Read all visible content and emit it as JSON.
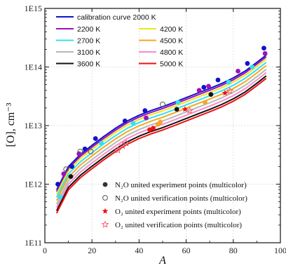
{
  "chart_data": {
    "type": "scatter",
    "xlabel": "A",
    "ylabel": "[O], cm⁻³",
    "xlim": [
      0,
      100
    ],
    "ylim": [
      100000000000.0,
      1000000000000000.0
    ],
    "y_scale": "log",
    "x_ticks": [
      "0",
      "20",
      "40",
      "60",
      "80",
      "100"
    ],
    "y_ticks": [
      {
        "value": 100000000000.0,
        "label": "1E11"
      },
      {
        "value": 1000000000000.0,
        "label": "1E12"
      },
      {
        "value": 10000000000000.0,
        "label": "1E13"
      },
      {
        "value": 100000000000000.0,
        "label": "1E14"
      },
      {
        "value": 1000000000000000.0,
        "label": "1E15"
      }
    ],
    "grid": true,
    "legend_curves": [
      {
        "name": "calibration curve 2000 K",
        "color": "#1212c8"
      },
      {
        "name": "2200 K",
        "color": "#9b12b8"
      },
      {
        "name": "4200 K",
        "color": "#e8e818"
      },
      {
        "name": "2700 K",
        "color": "#33e0f0"
      },
      {
        "name": "4500 K",
        "color": "#f5a623"
      },
      {
        "name": "3100 K",
        "color": "#b8b8b8"
      },
      {
        "name": "4800 K",
        "color": "#f58cc8"
      },
      {
        "name": "3600 K",
        "color": "#111111"
      },
      {
        "name": "5000 K",
        "color": "#ee1111"
      }
    ],
    "legend_markers": [
      {
        "label": "N₂O united experiment points (multicolor)",
        "marker": "filled-circle",
        "color": "#333333"
      },
      {
        "label": "N₂O united verification points (multicolor)",
        "marker": "open-circle",
        "color": "#555555"
      },
      {
        "label": "O₂ united experiment points (multicolor)",
        "marker": "filled-star",
        "color": "#ee1111"
      },
      {
        "label": "O₂ united verification points (multicolor)",
        "marker": "open-star",
        "color": "#ee5566"
      }
    ],
    "curve_base": {
      "x": [
        5,
        10,
        15,
        20,
        25,
        30,
        35,
        40,
        45,
        50,
        55,
        60,
        65,
        70,
        75,
        80,
        85,
        90,
        94
      ],
      "y": [
        800000000000.0,
        2000000000000.0,
        3200000000000.0,
        4600000000000.0,
        6500000000000.0,
        9000000000000.0,
        12000000000000.0,
        15000000000000.0,
        18000000000000.0,
        21000000000000.0,
        25000000000000.0,
        30000000000000.0,
        36000000000000.0,
        43000000000000.0,
        52000000000000.0,
        65000000000000.0,
        85000000000000.0,
        120000000000000.0,
        160000000000000.0
      ]
    },
    "curve_factors": [
      1.0,
      0.93,
      0.85,
      0.75,
      0.66,
      0.57,
      0.5,
      0.44,
      0.4
    ],
    "points": [
      {
        "x": 5.5,
        "y": 1000000000000.0,
        "marker": "filled-circle",
        "color": "#1212c8"
      },
      {
        "x": 6.5,
        "y": 600000000000.0,
        "marker": "filled-circle",
        "color": "#33e0f0"
      },
      {
        "x": 8,
        "y": 1500000000000.0,
        "marker": "filled-circle",
        "color": "#9b12b8"
      },
      {
        "x": 9,
        "y": 1800000000000.0,
        "marker": "open-circle",
        "color": "#555555"
      },
      {
        "x": 11,
        "y": 1350000000000.0,
        "marker": "filled-circle",
        "color": "#111111"
      },
      {
        "x": 11.5,
        "y": 2000000000000.0,
        "marker": "filled-circle",
        "color": "#1212c8"
      },
      {
        "x": 14.5,
        "y": 3300000000000.0,
        "marker": "filled-circle",
        "color": "#9b12b8"
      },
      {
        "x": 15,
        "y": 3600000000000.0,
        "marker": "open-circle",
        "color": "#555555"
      },
      {
        "x": 17,
        "y": 4000000000000.0,
        "marker": "filled-circle",
        "color": "#1212c8"
      },
      {
        "x": 19.5,
        "y": 3600000000000.0,
        "marker": "open-circle",
        "color": "#555555"
      },
      {
        "x": 21.5,
        "y": 6000000000000.0,
        "marker": "filled-circle",
        "color": "#1212c8"
      },
      {
        "x": 24,
        "y": 5000000000000.0,
        "marker": "filled-circle",
        "color": "#33e0f0"
      },
      {
        "x": 31,
        "y": 3800000000000.0,
        "marker": "open-star",
        "color": "#ee5566"
      },
      {
        "x": 33,
        "y": 4500000000000.0,
        "marker": "open-star",
        "color": "#ee5566"
      },
      {
        "x": 34.5,
        "y": 5000000000000.0,
        "marker": "open-star",
        "color": "#ee5566"
      },
      {
        "x": 34,
        "y": 12000000000000.0,
        "marker": "filled-circle",
        "color": "#1212c8"
      },
      {
        "x": 37.5,
        "y": 11000000000000.0,
        "marker": "filled-circle",
        "color": "#33e0f0"
      },
      {
        "x": 42.5,
        "y": 18000000000000.0,
        "marker": "filled-circle",
        "color": "#1212c8"
      },
      {
        "x": 43,
        "y": 13500000000000.0,
        "marker": "filled-circle",
        "color": "#9b12b8"
      },
      {
        "x": 44.5,
        "y": 8500000000000.0,
        "marker": "filled-circle",
        "color": "#ee1111"
      },
      {
        "x": 46,
        "y": 9000000000000.0,
        "marker": "filled-circle",
        "color": "#ee1111"
      },
      {
        "x": 48,
        "y": 10500000000000.0,
        "marker": "filled-circle",
        "color": "#f5a623"
      },
      {
        "x": 49,
        "y": 11500000000000.0,
        "marker": "filled-circle",
        "color": "#f5a623"
      },
      {
        "x": 50,
        "y": 23000000000000.0,
        "marker": "open-circle",
        "color": "#555555"
      },
      {
        "x": 56,
        "y": 19000000000000.0,
        "marker": "filled-circle",
        "color": "#111111"
      },
      {
        "x": 56.5,
        "y": 25000000000000.0,
        "marker": "filled-circle",
        "color": "#33e0f0"
      },
      {
        "x": 59.5,
        "y": 19000000000000.0,
        "marker": "filled-star",
        "color": "#ee1111"
      },
      {
        "x": 61.5,
        "y": 18000000000000.0,
        "marker": "open-star",
        "color": "#ee5566"
      },
      {
        "x": 65.5,
        "y": 40000000000000.0,
        "marker": "filled-circle",
        "color": "#9b12b8"
      },
      {
        "x": 67.5,
        "y": 45000000000000.0,
        "marker": "filled-circle",
        "color": "#1212c8"
      },
      {
        "x": 68,
        "y": 25000000000000.0,
        "marker": "filled-circle",
        "color": "#f5a623"
      },
      {
        "x": 69.5,
        "y": 47000000000000.0,
        "marker": "filled-circle",
        "color": "#9b12b8"
      },
      {
        "x": 70.5,
        "y": 34000000000000.0,
        "marker": "filled-circle",
        "color": "#111111"
      },
      {
        "x": 73.5,
        "y": 60000000000000.0,
        "marker": "filled-circle",
        "color": "#1212c8"
      },
      {
        "x": 76.5,
        "y": 36000000000000.0,
        "marker": "filled-star",
        "color": "#ee1111"
      },
      {
        "x": 78.5,
        "y": 39000000000000.0,
        "marker": "open-star",
        "color": "#ee5566"
      },
      {
        "x": 78,
        "y": 55000000000000.0,
        "marker": "filled-circle",
        "color": "#33e0f0"
      },
      {
        "x": 82,
        "y": 85000000000000.0,
        "marker": "filled-circle",
        "color": "#9b12b8"
      },
      {
        "x": 86,
        "y": 115000000000000.0,
        "marker": "filled-circle",
        "color": "#1212c8"
      },
      {
        "x": 88,
        "y": 100000000000000.0,
        "marker": "filled-circle",
        "color": "#33e0f0"
      },
      {
        "x": 93,
        "y": 210000000000000.0,
        "marker": "filled-circle",
        "color": "#1212c8"
      },
      {
        "x": 93.5,
        "y": 170000000000000.0,
        "marker": "filled-circle",
        "color": "#9b12b8"
      }
    ]
  }
}
